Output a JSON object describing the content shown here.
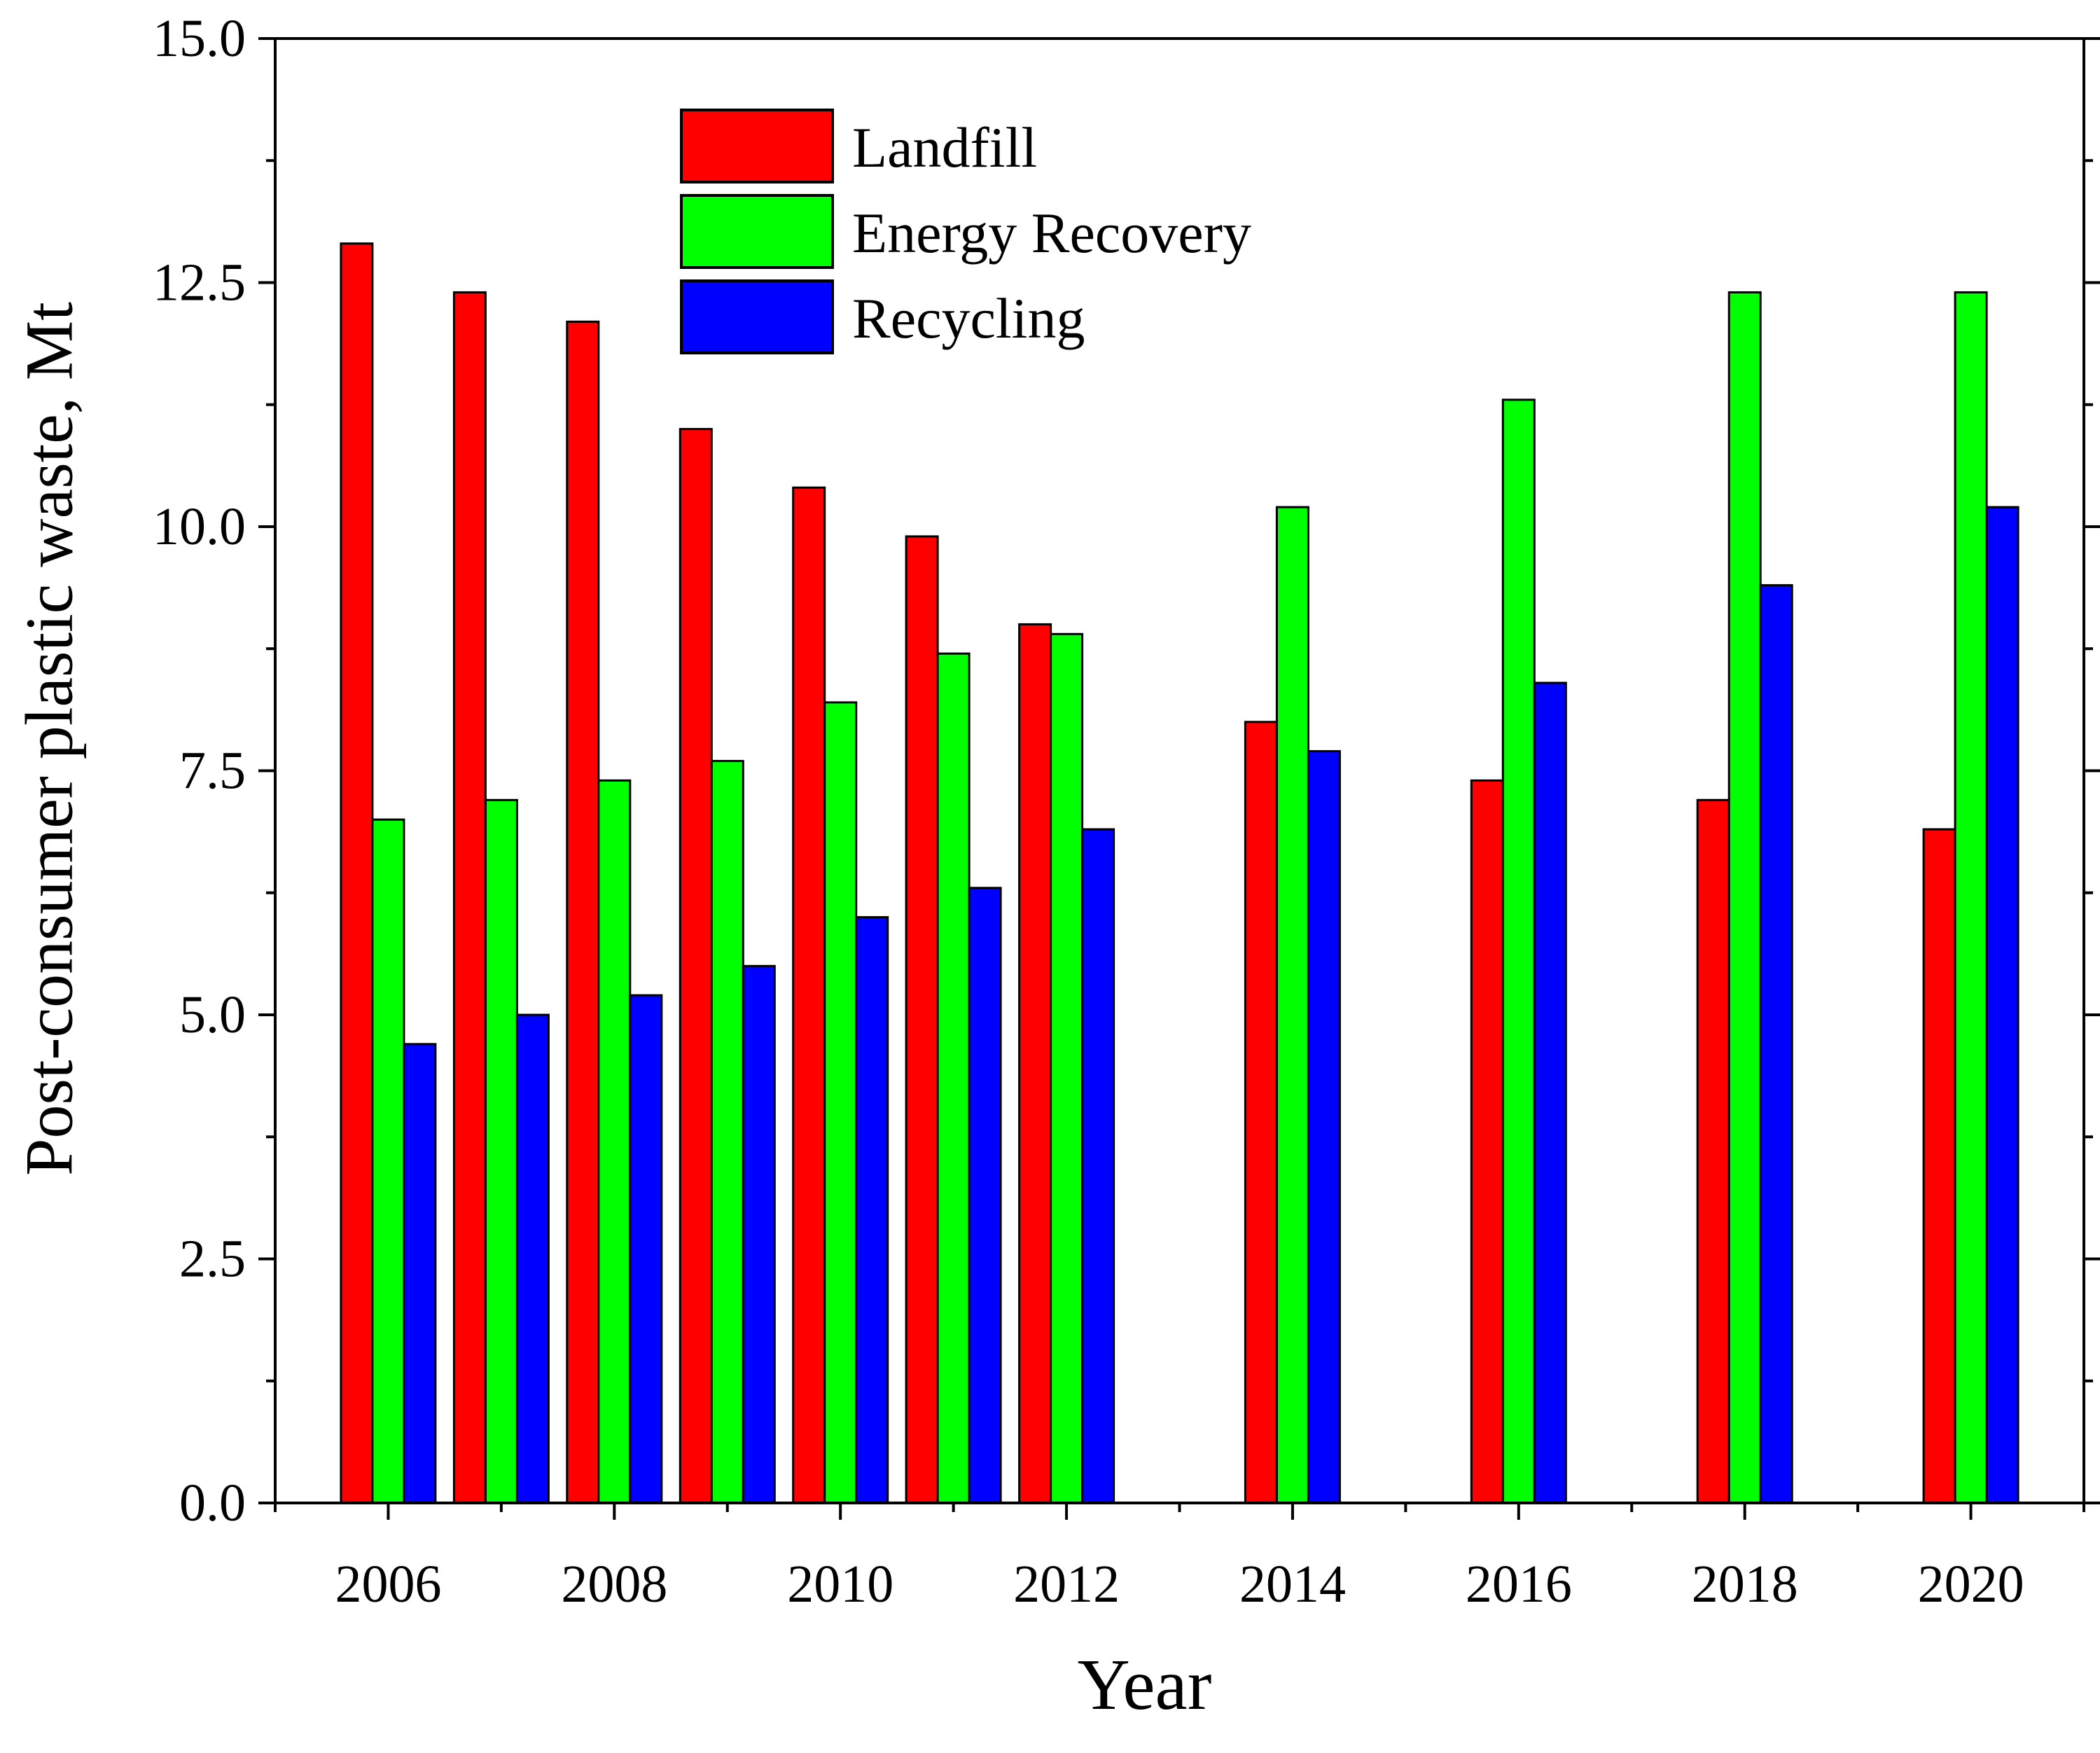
{
  "chart_data": {
    "type": "bar",
    "title": "",
    "xlabel": "Year",
    "ylabel": "Post-consumer plastic waste, Mt",
    "ylim": [
      0,
      15
    ],
    "yticks": [
      "0.0",
      "2.5",
      "5.0",
      "7.5",
      "10.0",
      "12.5",
      "15.0"
    ],
    "xlim": [
      2005,
      2021
    ],
    "xtick_labels": [
      "2006",
      "2008",
      "2010",
      "2012",
      "2014",
      "2016",
      "2018",
      "2020"
    ],
    "categories": [
      2006,
      2007,
      2008,
      2009,
      2010,
      2011,
      2012,
      2014,
      2016,
      2018,
      2020
    ],
    "series": [
      {
        "name": "Landfill",
        "color": "#ff0000",
        "values": [
          12.9,
          12.4,
          12.1,
          11.0,
          10.4,
          9.9,
          9.0,
          8.0,
          7.4,
          7.2,
          6.9
        ]
      },
      {
        "name": "Energy Recovery",
        "color": "#00ff00",
        "values": [
          7.0,
          7.2,
          7.4,
          7.6,
          8.2,
          8.7,
          8.9,
          10.2,
          11.3,
          12.4,
          12.4
        ]
      },
      {
        "name": "Recycling",
        "color": "#0000ff",
        "values": [
          4.7,
          5.0,
          5.2,
          5.5,
          6.0,
          6.3,
          6.9,
          7.7,
          8.4,
          9.4,
          10.2
        ]
      }
    ],
    "legend_position": "top-center",
    "grid": false
  }
}
